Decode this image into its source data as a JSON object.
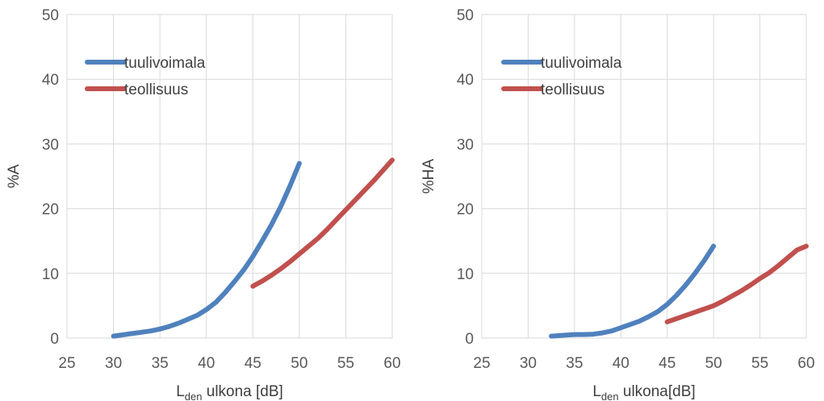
{
  "chart_data": [
    {
      "type": "line",
      "title": "",
      "xlabel": {
        "main": "L",
        "sub": "den",
        "rest": " ulkona [dB]"
      },
      "ylabel": "%A",
      "xlim": [
        25,
        60
      ],
      "ylim": [
        0,
        50
      ],
      "xticks": [
        25,
        30,
        35,
        40,
        45,
        50,
        55,
        60
      ],
      "yticks": [
        0,
        10,
        20,
        30,
        40,
        50
      ],
      "grid": true,
      "legend_position": "top-left",
      "series": [
        {
          "name": "tuulivoimala",
          "color": "#4f81bd",
          "x": [
            30,
            31,
            32,
            33,
            34,
            35,
            36,
            37,
            38,
            39,
            40,
            41,
            42,
            43,
            44,
            45,
            46,
            47,
            48,
            49,
            50
          ],
          "y": [
            0.3,
            0.5,
            0.7,
            0.9,
            1.1,
            1.4,
            1.8,
            2.3,
            2.9,
            3.5,
            4.4,
            5.5,
            7.0,
            8.7,
            10.5,
            12.6,
            15.0,
            17.5,
            20.3,
            23.5,
            27.0
          ]
        },
        {
          "name": "teollisuus",
          "color": "#c0504d",
          "x": [
            45,
            46,
            47,
            48,
            49,
            50,
            51,
            52,
            53,
            54,
            55,
            56,
            57,
            58,
            59,
            60
          ],
          "y": [
            8.0,
            8.8,
            9.7,
            10.7,
            11.8,
            13.0,
            14.2,
            15.4,
            16.8,
            18.3,
            19.8,
            21.3,
            22.8,
            24.3,
            25.9,
            27.5
          ]
        }
      ]
    },
    {
      "type": "line",
      "title": "",
      "xlabel": {
        "main": "L",
        "sub": "den",
        "rest": " ulkona[dB]"
      },
      "ylabel": "%HA",
      "xlim": [
        25,
        60
      ],
      "ylim": [
        0,
        50
      ],
      "xticks": [
        25,
        30,
        35,
        40,
        45,
        50,
        55,
        60
      ],
      "yticks": [
        0,
        10,
        20,
        30,
        40,
        50
      ],
      "grid": true,
      "legend_position": "top-left",
      "series": [
        {
          "name": "tuulivoimala",
          "color": "#4f81bd",
          "x": [
            32.5,
            33,
            34,
            35,
            36,
            37,
            38,
            39,
            40,
            41,
            42,
            43,
            44,
            45,
            46,
            47,
            48,
            49,
            50
          ],
          "y": [
            0.3,
            0.35,
            0.45,
            0.55,
            0.55,
            0.6,
            0.8,
            1.1,
            1.6,
            2.1,
            2.6,
            3.3,
            4.1,
            5.2,
            6.6,
            8.2,
            10.0,
            12.0,
            14.2
          ]
        },
        {
          "name": "teollisuus",
          "color": "#c0504d",
          "x": [
            45,
            46,
            47,
            48,
            49,
            50,
            51,
            52,
            53,
            54,
            55,
            56,
            57,
            58,
            59,
            60
          ],
          "y": [
            2.5,
            3.0,
            3.5,
            4.0,
            4.5,
            5.0,
            5.7,
            6.5,
            7.3,
            8.2,
            9.2,
            10.1,
            11.2,
            12.4,
            13.6,
            14.2
          ]
        }
      ]
    }
  ]
}
